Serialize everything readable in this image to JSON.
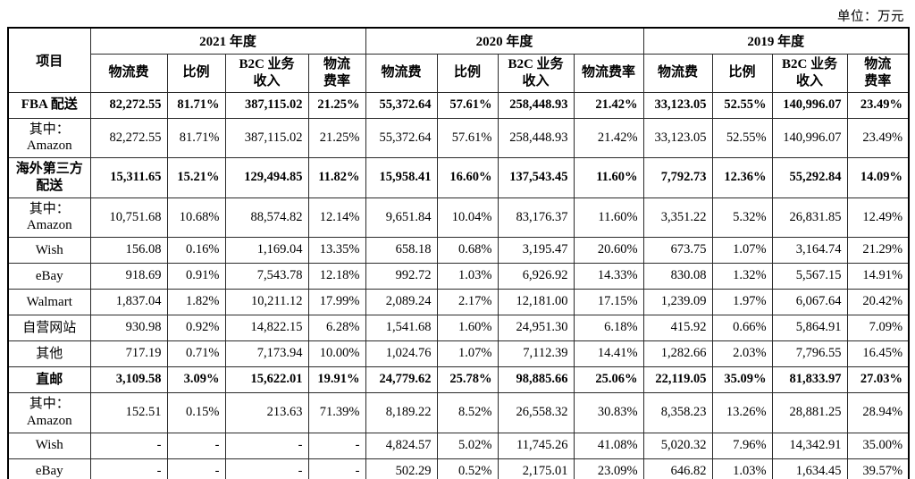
{
  "unit_label": "单位：万元",
  "table": {
    "item_header": "项目",
    "year_groups": [
      {
        "label": "2021 年度",
        "subheaders": [
          "物流费",
          "比例",
          "B2C 业务\n收入",
          "物流\n费率"
        ]
      },
      {
        "label": "2020 年度",
        "subheaders": [
          "物流费",
          "比例",
          "B2C 业务\n收入",
          "物流费率"
        ]
      },
      {
        "label": "2019 年度",
        "subheaders": [
          "物流费",
          "比例",
          "B2C 业务\n收入",
          "物流\n费率"
        ]
      }
    ],
    "rows": [
      {
        "label": "FBA 配送",
        "bold": true,
        "cells": [
          "82,272.55",
          "81.71%",
          "387,115.02",
          "21.25%",
          "55,372.64",
          "57.61%",
          "258,448.93",
          "21.42%",
          "33,123.05",
          "52.55%",
          "140,996.07",
          "23.49%"
        ]
      },
      {
        "label": "其中：\nAmazon",
        "bold": false,
        "cells": [
          "82,272.55",
          "81.71%",
          "387,115.02",
          "21.25%",
          "55,372.64",
          "57.61%",
          "258,448.93",
          "21.42%",
          "33,123.05",
          "52.55%",
          "140,996.07",
          "23.49%"
        ]
      },
      {
        "label": "海外第三方\n配送",
        "bold": true,
        "cells": [
          "15,311.65",
          "15.21%",
          "129,494.85",
          "11.82%",
          "15,958.41",
          "16.60%",
          "137,543.45",
          "11.60%",
          "7,792.73",
          "12.36%",
          "55,292.84",
          "14.09%"
        ]
      },
      {
        "label": "其中：\nAmazon",
        "bold": false,
        "cells": [
          "10,751.68",
          "10.68%",
          "88,574.82",
          "12.14%",
          "9,651.84",
          "10.04%",
          "83,176.37",
          "11.60%",
          "3,351.22",
          "5.32%",
          "26,831.85",
          "12.49%"
        ]
      },
      {
        "label": "Wish",
        "bold": false,
        "cells": [
          "156.08",
          "0.16%",
          "1,169.04",
          "13.35%",
          "658.18",
          "0.68%",
          "3,195.47",
          "20.60%",
          "673.75",
          "1.07%",
          "3,164.74",
          "21.29%"
        ]
      },
      {
        "label": "eBay",
        "bold": false,
        "cells": [
          "918.69",
          "0.91%",
          "7,543.78",
          "12.18%",
          "992.72",
          "1.03%",
          "6,926.92",
          "14.33%",
          "830.08",
          "1.32%",
          "5,567.15",
          "14.91%"
        ]
      },
      {
        "label": "Walmart",
        "bold": false,
        "cells": [
          "1,837.04",
          "1.82%",
          "10,211.12",
          "17.99%",
          "2,089.24",
          "2.17%",
          "12,181.00",
          "17.15%",
          "1,239.09",
          "1.97%",
          "6,067.64",
          "20.42%"
        ]
      },
      {
        "label": "自营网站",
        "bold": false,
        "cells": [
          "930.98",
          "0.92%",
          "14,822.15",
          "6.28%",
          "1,541.68",
          "1.60%",
          "24,951.30",
          "6.18%",
          "415.92",
          "0.66%",
          "5,864.91",
          "7.09%"
        ]
      },
      {
        "label": "其他",
        "bold": false,
        "cells": [
          "717.19",
          "0.71%",
          "7,173.94",
          "10.00%",
          "1,024.76",
          "1.07%",
          "7,112.39",
          "14.41%",
          "1,282.66",
          "2.03%",
          "7,796.55",
          "16.45%"
        ]
      },
      {
        "label": "直邮",
        "bold": true,
        "cells": [
          "3,109.58",
          "3.09%",
          "15,622.01",
          "19.91%",
          "24,779.62",
          "25.78%",
          "98,885.66",
          "25.06%",
          "22,119.05",
          "35.09%",
          "81,833.97",
          "27.03%"
        ]
      },
      {
        "label": "其中：\nAmazon",
        "bold": false,
        "cells": [
          "152.51",
          "0.15%",
          "213.63",
          "71.39%",
          "8,189.22",
          "8.52%",
          "26,558.32",
          "30.83%",
          "8,358.23",
          "13.26%",
          "28,881.25",
          "28.94%"
        ]
      },
      {
        "label": "Wish",
        "bold": false,
        "cells": [
          "-",
          "-",
          "-",
          "-",
          "4,824.57",
          "5.02%",
          "11,745.26",
          "41.08%",
          "5,020.32",
          "7.96%",
          "14,342.91",
          "35.00%"
        ]
      },
      {
        "label": "eBay",
        "bold": false,
        "cells": [
          "-",
          "-",
          "-",
          "-",
          "502.29",
          "0.52%",
          "2,175.01",
          "23.09%",
          "646.82",
          "1.03%",
          "1,634.45",
          "39.57%"
        ]
      }
    ]
  }
}
